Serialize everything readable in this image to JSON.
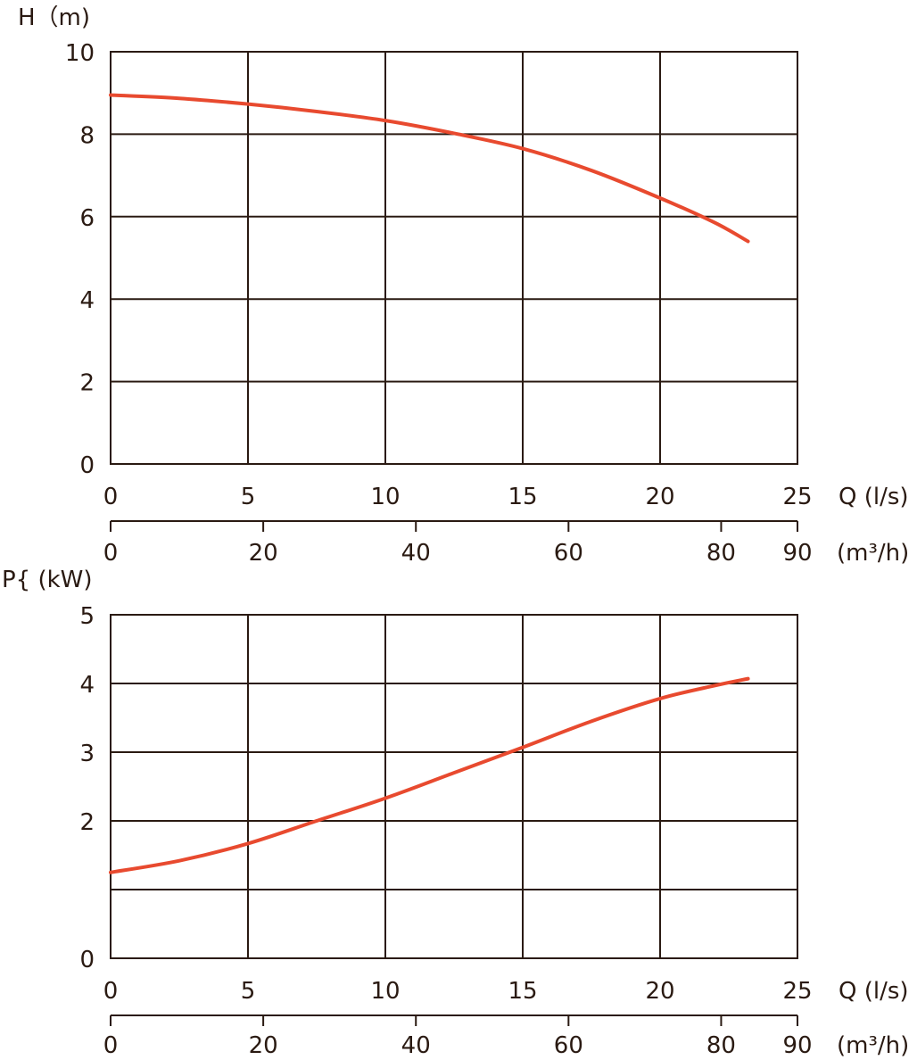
{
  "chart_data": [
    {
      "type": "line",
      "ylabel": "H（m)",
      "xlabel": "Q (l/s)",
      "x2label": "(m³/h)",
      "xlim": [
        0,
        25
      ],
      "ylim": [
        0,
        10
      ],
      "x_ticks": [
        "0",
        "5",
        "10",
        "15",
        "20",
        "25"
      ],
      "y_ticks": [
        "0",
        "2",
        "4",
        "6",
        "8",
        "10"
      ],
      "x2_ticks": [
        "0",
        "20",
        "40",
        "60",
        "80",
        "90"
      ],
      "x2_tick_values": [
        0,
        20,
        40,
        60,
        80,
        90
      ],
      "x2_max": 90,
      "y_grid": [
        2,
        4,
        6,
        8
      ],
      "grid": true,
      "color": "#e84a2f",
      "series": [
        {
          "x": [
            0,
            2.5,
            5,
            7.5,
            10,
            12.5,
            15,
            17.5,
            20,
            22,
            23.2
          ],
          "y": [
            8.95,
            8.87,
            8.73,
            8.55,
            8.33,
            8.02,
            7.65,
            7.12,
            6.45,
            5.85,
            5.4
          ]
        }
      ]
    },
    {
      "type": "line",
      "ylabel": "P{ (kW)",
      "xlabel": "Q (l/s)",
      "x2label": "(m³/h)",
      "xlim": [
        0,
        25
      ],
      "ylim": [
        0,
        5
      ],
      "x_ticks": [
        "0",
        "5",
        "10",
        "15",
        "20",
        "25"
      ],
      "y_ticks": [
        "0",
        "",
        "2",
        "3",
        "4",
        "5"
      ],
      "x2_ticks": [
        "0",
        "20",
        "40",
        "60",
        "80",
        "90"
      ],
      "x2_tick_values": [
        0,
        20,
        40,
        60,
        80,
        90
      ],
      "x2_max": 90,
      "y_grid": [
        1,
        2,
        3,
        4
      ],
      "grid": true,
      "color": "#e84a2f",
      "series": [
        {
          "x": [
            0,
            2.5,
            5,
            7.5,
            10,
            12.5,
            15,
            17.5,
            20,
            22,
            23.2
          ],
          "y": [
            1.25,
            1.42,
            1.67,
            2.0,
            2.33,
            2.7,
            3.07,
            3.45,
            3.78,
            3.97,
            4.07
          ]
        }
      ]
    }
  ]
}
